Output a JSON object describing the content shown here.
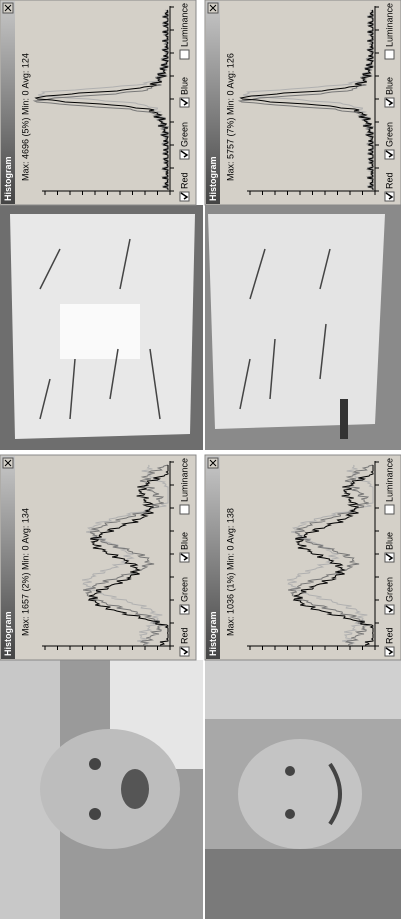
{
  "windows": [
    {
      "title": "Histogram",
      "stats": "Max: 1657 (2%)  Min: 0  Avg: 134",
      "options": [
        "Red",
        "Green",
        "Blue",
        "Luminance"
      ]
    },
    {
      "title": "Histogram",
      "stats": "Max: 1036 (1%)  Min: 0  Avg: 138",
      "options": [
        "Red",
        "Green",
        "Blue",
        "Luminance"
      ]
    },
    {
      "title": "Histogram",
      "stats": "Max: 4696 (5%)  Min: 0  Avg: 124",
      "options": [
        "Red",
        "Green",
        "Blue",
        "Luminance"
      ]
    },
    {
      "title": "Histogram",
      "stats": "Max: 5757 (7%)  Min: 0  Avg: 126",
      "options": [
        "Red",
        "Green",
        "Blue",
        "Luminance"
      ]
    }
  ]
}
